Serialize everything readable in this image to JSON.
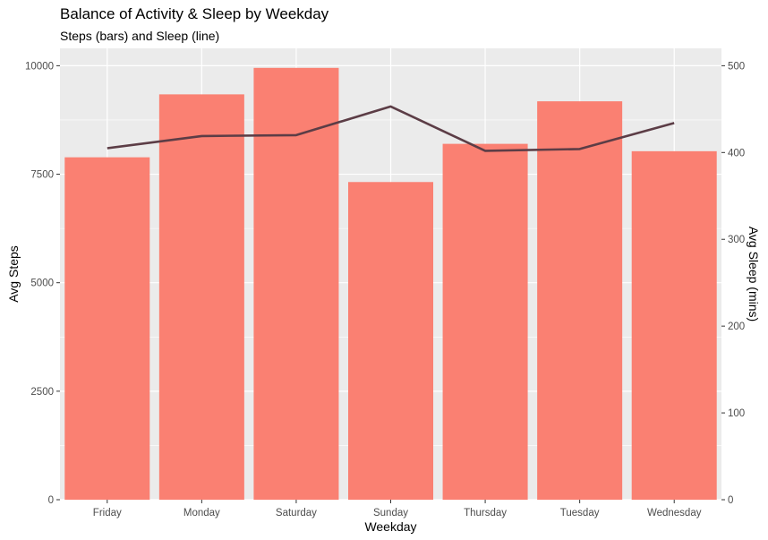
{
  "chart_data": {
    "type": "bar",
    "title": "Balance of Activity & Sleep by Weekday",
    "subtitle": "Steps (bars) and Sleep (line)",
    "xlabel": "Weekday",
    "ylabel": "Avg Steps",
    "y2label": "Avg Sleep (mins)",
    "categories": [
      "Friday",
      "Monday",
      "Saturday",
      "Sunday",
      "Thursday",
      "Tuesday",
      "Wednesday"
    ],
    "series": [
      {
        "name": "Avg Steps",
        "type": "bar",
        "axis": "left",
        "values": [
          7890,
          9340,
          9950,
          7320,
          8200,
          9180,
          8030
        ],
        "color": "#fa8072"
      },
      {
        "name": "Avg Sleep",
        "type": "line",
        "axis": "right",
        "values": [
          405,
          419,
          420,
          453,
          402,
          404,
          434
        ],
        "color": "#5c3d46"
      }
    ],
    "ylim": [
      0,
      10400
    ],
    "y_ticks": [
      0,
      2500,
      5000,
      7500,
      10000
    ],
    "y2lim": [
      0,
      520
    ],
    "y2_ticks": [
      0,
      100,
      200,
      300,
      400,
      500
    ],
    "grid": true,
    "panel_color": "#ebebeb"
  }
}
